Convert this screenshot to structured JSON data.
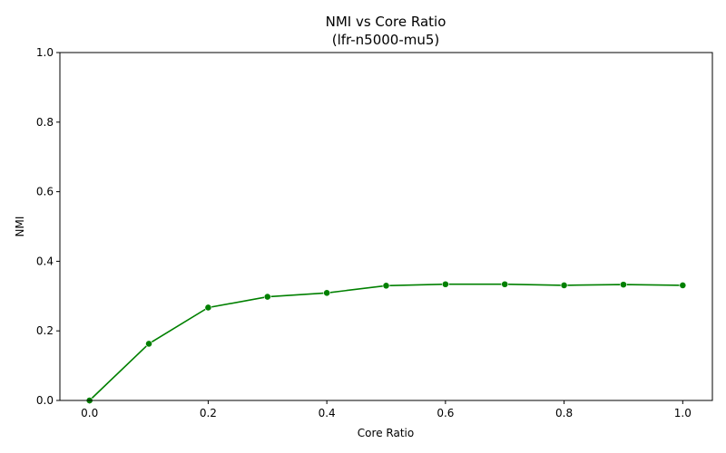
{
  "chart_data": {
    "type": "line",
    "title": "NMI vs Core Ratio",
    "subtitle": "(lfr-n5000-mu5)",
    "xlabel": "Core Ratio",
    "ylabel": "NMI",
    "xlim": [
      -0.05,
      1.05
    ],
    "ylim": [
      0,
      1
    ],
    "xticks": [
      0.0,
      0.2,
      0.4,
      0.6,
      0.8,
      1.0
    ],
    "xtick_labels": [
      "0.0",
      "0.2",
      "0.4",
      "0.6",
      "0.8",
      "1.0"
    ],
    "yticks": [
      0.0,
      0.2,
      0.4,
      0.6,
      0.8,
      1.0
    ],
    "ytick_labels": [
      "0.0",
      "0.2",
      "0.4",
      "0.6",
      "0.8",
      "1.0"
    ],
    "grid": false,
    "legend": "none",
    "series": [
      {
        "color": "#008000",
        "marker": "circle",
        "x": [
          0.0,
          0.1,
          0.2,
          0.3,
          0.4,
          0.5,
          0.6,
          0.7,
          0.8,
          0.9,
          1.0
        ],
        "y": [
          0.0,
          0.163,
          0.267,
          0.298,
          0.309,
          0.33,
          0.334,
          0.334,
          0.331,
          0.333,
          0.331
        ]
      }
    ]
  }
}
